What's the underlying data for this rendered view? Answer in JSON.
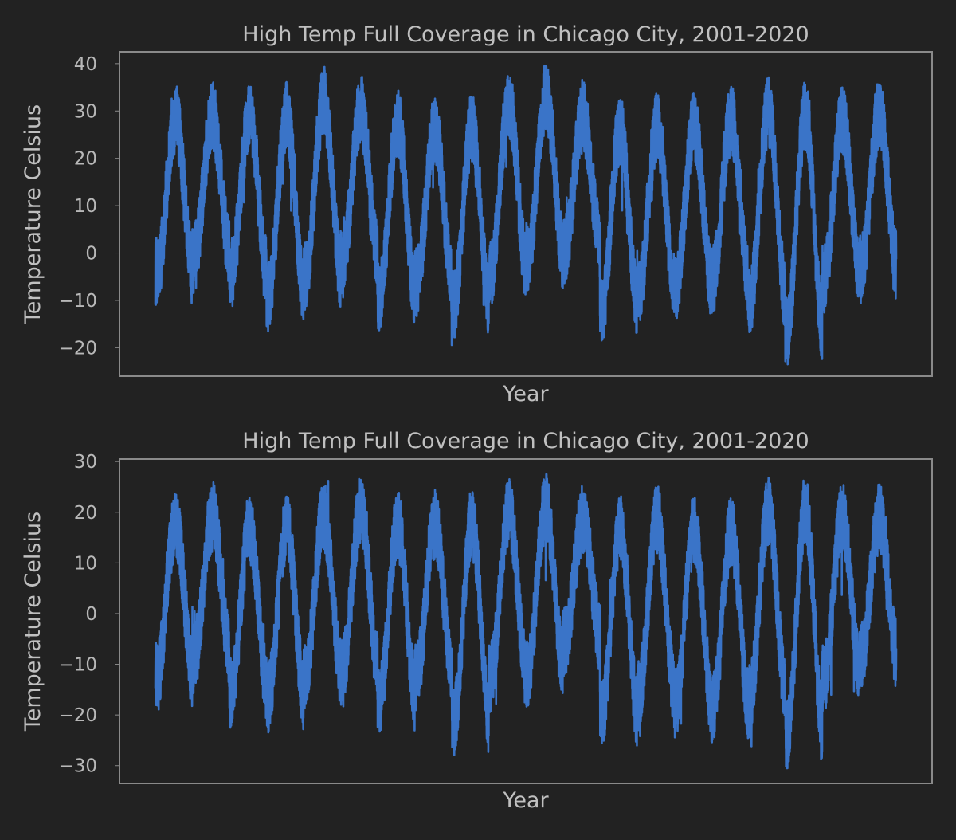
{
  "figure": {
    "background": "#222222",
    "text_color": "#c0c0c0",
    "tick_label_color": "#b8b8b8",
    "frame_color": "#8a8a8a",
    "line_color": "#3a74c8"
  },
  "chart_data": [
    {
      "type": "line",
      "title": "High Temp Full Coverage in Chicago City, 2001-2020",
      "xlabel": "Year",
      "ylabel": "Temperature Celsius",
      "x_ticks_shown": false,
      "x_range": [
        2001,
        2021
      ],
      "ylim": [
        -26,
        42.5
      ],
      "yticks": [
        -20,
        -10,
        0,
        10,
        20,
        30,
        40
      ],
      "ytick_labels": [
        "−20",
        "−10",
        "0",
        "10",
        "20",
        "30",
        "40"
      ],
      "grid": false,
      "legend": "none",
      "series": [
        {
          "sampling": "daily values, 2001-01-01 to 2020-12-31",
          "annual_mean": 14.5,
          "seasonal_amplitude": 15.5,
          "day_to_day_noise": 7.5,
          "annual_peaks": [
            35,
            35.5,
            35,
            35.5,
            39,
            37,
            34,
            33,
            33,
            38.5,
            39.5,
            35.5,
            33,
            33.5,
            33.5,
            35,
            36.5,
            36,
            35,
            36
          ],
          "annual_troughs": [
            -11,
            -8,
            -11,
            -16,
            -12,
            -9,
            -16.5,
            -13,
            -18,
            -11,
            -8,
            -6,
            -19,
            -15,
            -14,
            -12.5,
            -17,
            -23.5,
            -12,
            -10
          ],
          "min": -23.5,
          "max": 39.5
        }
      ]
    },
    {
      "type": "line",
      "title": "High Temp Full Coverage in Chicago City, 2001-2020",
      "xlabel": "Year",
      "ylabel": "Temperature Celsius",
      "x_ticks_shown": false,
      "x_range": [
        2001,
        2021
      ],
      "ylim": [
        -33.5,
        30.5
      ],
      "yticks": [
        -30,
        -20,
        -10,
        0,
        10,
        20,
        30
      ],
      "ytick_labels": [
        "−30",
        "−20",
        "−10",
        "0",
        "10",
        "20",
        "30"
      ],
      "grid": false,
      "legend": "none",
      "series": [
        {
          "sampling": "daily values, 2001-01-01 to 2020-12-31",
          "annual_mean": 2.5,
          "seasonal_amplitude": 14.5,
          "day_to_day_noise": 7,
          "annual_peaks": [
            24.5,
            25.5,
            23,
            23,
            25.5,
            26.5,
            24,
            24,
            24,
            26.5,
            27.5,
            25,
            23,
            25,
            23,
            22.5,
            26.5,
            27,
            25.5,
            25
          ],
          "annual_troughs": [
            -19,
            -15,
            -22,
            -23,
            -18,
            -18,
            -23.5,
            -19,
            -28,
            -19,
            -18,
            -12,
            -26.5,
            -22.5,
            -24,
            -25,
            -23,
            -30.5,
            -19,
            -15
          ],
          "min": -30.5,
          "max": 27.5
        }
      ]
    }
  ]
}
